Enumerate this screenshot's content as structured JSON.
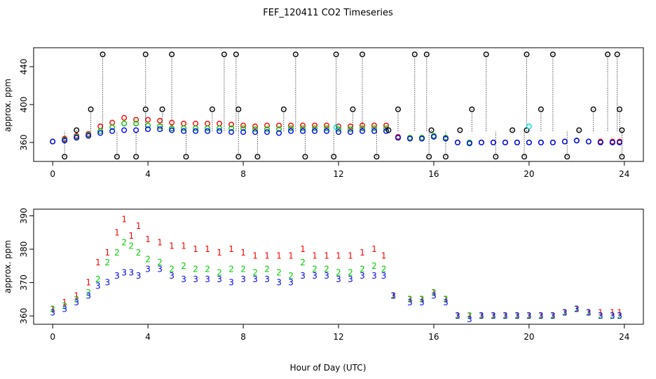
{
  "figure": {
    "title": "FEF_120411  CO2 Timeseries",
    "xlabel": "Hour of Day (UTC)"
  },
  "colors": {
    "series1": "#ff0000",
    "series2": "#00cc00",
    "series3": "#0000ff",
    "cyan": "#00e5e5",
    "black": "#000000"
  },
  "chart_data": [
    {
      "type": "scatter",
      "ylabel": "approx. ppm",
      "xlim": [
        -0.8,
        24.8
      ],
      "ylim": [
        340,
        460
      ],
      "xticks": [
        0,
        4,
        8,
        12,
        16,
        20,
        24
      ],
      "xtick_labels": [
        "0",
        "4",
        "8",
        "12",
        "16",
        "20",
        "24"
      ],
      "yticks": [
        360,
        400,
        440
      ],
      "ytick_labels": [
        "360",
        "400",
        "440"
      ],
      "grid": false,
      "series": [
        {
          "marker": "circle",
          "color": "red",
          "x": [
            0.0,
            0.5,
            1.0,
            1.5,
            2.0,
            2.5,
            3.0,
            3.5,
            4.0,
            4.5,
            5.0,
            5.5,
            6.0,
            6.5,
            7.0,
            7.5,
            8.0,
            8.5,
            9.0,
            9.5,
            10.0,
            10.5,
            11.0,
            11.5,
            12.0,
            12.5,
            13.0,
            13.5,
            14.0,
            14.5,
            15.0,
            15.5,
            16.0,
            16.5,
            17.0,
            17.5,
            18.0,
            18.5,
            19.0,
            19.5,
            20.0,
            20.5,
            21.0,
            21.5,
            22.0,
            22.5,
            23.0,
            23.5,
            23.8
          ],
          "y": [
            361,
            364,
            367,
            369,
            377,
            381,
            386,
            384,
            384,
            383,
            381,
            380,
            380,
            380,
            380,
            379,
            378,
            377,
            378,
            378,
            378,
            378,
            378,
            378,
            377,
            377,
            378,
            378,
            378,
            366,
            365,
            365,
            367,
            365,
            360,
            360,
            360,
            360,
            360,
            360,
            360,
            360,
            360,
            361,
            362,
            361,
            361,
            361,
            361
          ]
        },
        {
          "marker": "circle",
          "color": "green",
          "x": [
            0.0,
            0.5,
            1.0,
            1.5,
            2.0,
            2.5,
            3.0,
            3.5,
            4.0,
            4.5,
            5.0,
            5.5,
            6.0,
            6.5,
            7.0,
            7.5,
            8.0,
            8.5,
            9.0,
            9.5,
            10.0,
            10.5,
            11.0,
            11.5,
            12.0,
            12.5,
            13.0,
            13.5,
            14.0,
            14.5,
            15.0,
            15.5,
            16.0,
            16.5,
            17.0,
            17.5,
            18.0,
            18.5,
            19.0,
            19.5,
            20.0,
            20.5,
            21.0,
            21.5,
            22.0,
            22.5,
            23.0,
            23.5,
            23.8
          ],
          "y": [
            361,
            363,
            366,
            368,
            372,
            376,
            380,
            380,
            378,
            377,
            375,
            375,
            375,
            375,
            375,
            375,
            375,
            374,
            374,
            374,
            375,
            375,
            375,
            375,
            374,
            374,
            375,
            375,
            375,
            365,
            365,
            365,
            367,
            365,
            360,
            360,
            360,
            360,
            360,
            360,
            360,
            360,
            360,
            361,
            362,
            361,
            360,
            360,
            360
          ]
        },
        {
          "marker": "circle",
          "color": "blue",
          "x": [
            0.0,
            0.5,
            1.0,
            1.5,
            2.0,
            2.5,
            3.0,
            3.5,
            4.0,
            4.5,
            5.0,
            5.5,
            6.0,
            6.5,
            7.0,
            7.5,
            8.0,
            8.5,
            9.0,
            9.5,
            10.0,
            10.5,
            11.0,
            11.5,
            12.0,
            12.5,
            13.0,
            13.5,
            14.0,
            14.5,
            15.0,
            15.5,
            16.0,
            16.5,
            17.0,
            17.5,
            18.0,
            18.5,
            19.0,
            19.5,
            20.0,
            20.5,
            21.0,
            21.5,
            22.0,
            22.5,
            23.0,
            23.5,
            23.8
          ],
          "y": [
            361,
            362,
            365,
            367,
            370,
            372,
            373,
            373,
            374,
            374,
            373,
            372,
            372,
            372,
            372,
            371,
            371,
            371,
            371,
            370,
            372,
            372,
            372,
            372,
            371,
            371,
            372,
            372,
            372,
            365,
            364,
            364,
            366,
            364,
            360,
            359,
            360,
            360,
            360,
            360,
            360,
            360,
            360,
            361,
            362,
            361,
            360,
            360,
            360
          ]
        },
        {
          "marker": "circle",
          "color": "black",
          "x": [
            0.5,
            1.0,
            1.6,
            2.1,
            2.7,
            3.5,
            3.9,
            3.9,
            4.6,
            5.0,
            5.6,
            6.7,
            7.2,
            7.7,
            7.8,
            7.8,
            8.6,
            9.7,
            10.2,
            10.6,
            11.8,
            11.9,
            12.6,
            13.0,
            13.6,
            14.1,
            14.5,
            15.2,
            15.7,
            15.8,
            15.9,
            16.5,
            17.1,
            17.6,
            18.2,
            18.6,
            19.3,
            19.8,
            19.9,
            19.9,
            20.5,
            21.0,
            21.6,
            22.1,
            22.7,
            23.3,
            23.7,
            23.8,
            23.9,
            23.9
          ],
          "y": [
            345,
            373,
            395,
            453,
            345,
            345,
            395,
            453,
            395,
            453,
            345,
            395,
            453,
            453,
            395,
            345,
            345,
            395,
            453,
            345,
            345,
            453,
            395,
            453,
            345,
            373,
            395,
            453,
            453,
            345,
            373,
            345,
            373,
            395,
            453,
            345,
            373,
            345,
            453,
            373,
            395,
            453,
            345,
            373,
            395,
            453,
            453,
            395,
            373,
            345
          ]
        },
        {
          "marker": "circle",
          "color": "cyan",
          "x": [
            11.9,
            20.0
          ],
          "y": [
            376,
            377
          ]
        }
      ]
    },
    {
      "type": "scatter",
      "ylabel": "approx. ppm",
      "xlim": [
        -0.8,
        24.8
      ],
      "ylim": [
        357.5,
        392
      ],
      "xticks": [
        0,
        4,
        8,
        12,
        16,
        20,
        24
      ],
      "xtick_labels": [
        "0",
        "4",
        "8",
        "12",
        "16",
        "20",
        "24"
      ],
      "yticks": [
        360,
        370,
        380,
        390
      ],
      "ytick_labels": [
        "360",
        "370",
        "380",
        "390"
      ],
      "grid": false,
      "series": [
        {
          "marker": "1",
          "color": "red",
          "x": [
            0.0,
            0.5,
            1.0,
            1.5,
            1.9,
            2.3,
            2.7,
            3.0,
            3.3,
            3.6,
            4.0,
            4.5,
            5.0,
            5.5,
            6.0,
            6.5,
            7.0,
            7.5,
            8.0,
            8.5,
            9.0,
            9.5,
            10.0,
            10.5,
            11.0,
            11.5,
            12.0,
            12.5,
            13.0,
            13.5,
            13.9,
            14.3,
            15.0,
            15.5,
            16.0,
            16.5,
            17.0,
            17.5,
            18.0,
            18.5,
            19.0,
            19.5,
            20.0,
            20.5,
            21.0,
            21.5,
            22.0,
            22.5,
            23.0,
            23.5,
            23.8
          ],
          "y": [
            362,
            364,
            366,
            370,
            376,
            379,
            385,
            389,
            384,
            387,
            383,
            382,
            381,
            381,
            380,
            380,
            379,
            380,
            379,
            378,
            378,
            378,
            378,
            380,
            378,
            378,
            378,
            378,
            379,
            380,
            378,
            366,
            365,
            365,
            367,
            365,
            360,
            360,
            360,
            360,
            360,
            360,
            360,
            360,
            360,
            361,
            362,
            361,
            361,
            361,
            361
          ]
        },
        {
          "marker": "2",
          "color": "green",
          "x": [
            0.0,
            0.5,
            1.0,
            1.5,
            1.9,
            2.3,
            2.7,
            3.0,
            3.3,
            3.6,
            4.0,
            4.5,
            5.0,
            5.5,
            6.0,
            6.5,
            7.0,
            7.5,
            8.0,
            8.5,
            9.0,
            9.5,
            10.0,
            10.5,
            11.0,
            11.5,
            12.0,
            12.5,
            13.0,
            13.5,
            13.9,
            14.3,
            15.0,
            15.5,
            16.0,
            16.5,
            17.0,
            17.5,
            18.0,
            18.5,
            19.0,
            19.5,
            20.0,
            20.5,
            21.0,
            21.5,
            22.0,
            22.5,
            23.0,
            23.5,
            23.8
          ],
          "y": [
            362,
            363,
            365,
            367,
            371,
            376,
            379,
            382,
            381,
            379,
            377,
            376,
            374,
            375,
            374,
            374,
            373,
            374,
            374,
            373,
            374,
            373,
            372,
            376,
            374,
            374,
            373,
            373,
            374,
            375,
            374,
            366,
            365,
            365,
            367,
            365,
            360,
            360,
            360,
            360,
            360,
            360,
            360,
            360,
            360,
            361,
            362,
            361,
            360,
            360,
            360
          ]
        },
        {
          "marker": "3",
          "color": "blue",
          "x": [
            0.0,
            0.5,
            1.0,
            1.5,
            1.9,
            2.3,
            2.7,
            3.0,
            3.3,
            3.6,
            4.0,
            4.5,
            5.0,
            5.5,
            6.0,
            6.5,
            7.0,
            7.5,
            8.0,
            8.5,
            9.0,
            9.5,
            10.0,
            10.5,
            11.0,
            11.5,
            12.0,
            12.5,
            13.0,
            13.5,
            13.9,
            14.3,
            15.0,
            15.5,
            16.0,
            16.5,
            17.0,
            17.5,
            18.0,
            18.5,
            19.0,
            19.5,
            20.0,
            20.5,
            21.0,
            21.5,
            22.0,
            22.5,
            23.0,
            23.5,
            23.8
          ],
          "y": [
            361,
            362,
            364,
            366,
            369,
            370,
            372,
            373,
            373,
            372,
            374,
            374,
            372,
            371,
            371,
            371,
            371,
            370,
            371,
            371,
            371,
            370,
            370,
            372,
            372,
            372,
            371,
            371,
            372,
            372,
            372,
            366,
            364,
            364,
            366,
            364,
            360,
            359,
            360,
            360,
            360,
            360,
            360,
            360,
            360,
            361,
            362,
            361,
            360,
            360,
            360
          ]
        }
      ]
    }
  ]
}
